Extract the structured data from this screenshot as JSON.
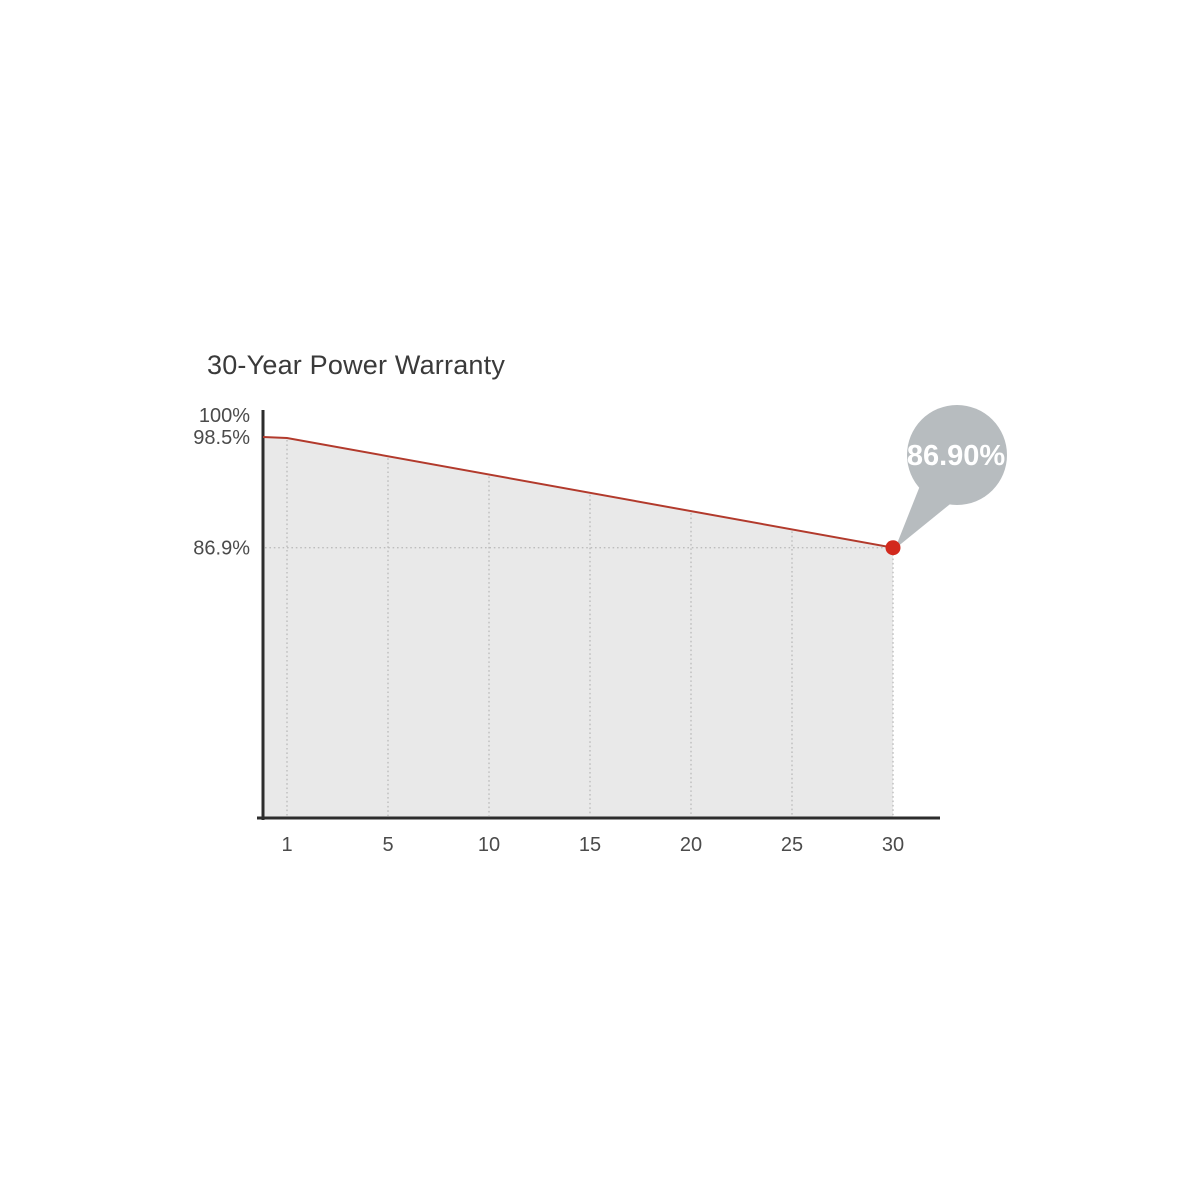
{
  "chart_data": {
    "type": "area",
    "title": "30-Year Power Warranty",
    "xlabel": "",
    "ylabel": "",
    "x_ticks": [
      {
        "label": "1",
        "year": 1
      },
      {
        "label": "5",
        "year": 5
      },
      {
        "label": "10",
        "year": 10
      },
      {
        "label": "15",
        "year": 15
      },
      {
        "label": "20",
        "year": 20
      },
      {
        "label": "25",
        "year": 25
      },
      {
        "label": "30",
        "year": 30
      }
    ],
    "y_ticks": [
      {
        "label": "100%",
        "value": 100
      },
      {
        "label": "98.5%",
        "value": 98.5
      },
      {
        "label": "86.9%",
        "value": 86.9
      }
    ],
    "series": [
      {
        "name": "warranted-power-output",
        "points": [
          {
            "year": 0,
            "value": 98.5
          },
          {
            "year": 1,
            "value": 98.4
          },
          {
            "year": 30,
            "value": 86.9
          }
        ]
      }
    ],
    "annotation": {
      "label": "86.90%",
      "year": 30,
      "value": 86.9
    },
    "axis_range": {
      "x_years": [
        0,
        30
      ],
      "y_top_percent": 100
    },
    "grid": "dotted",
    "legend": "none",
    "colors": {
      "line": "#b23a2c",
      "dot": "#d2291d",
      "area": "#e9e9e9",
      "grid": "#bdbdbd",
      "axis": "#2d2d2d",
      "bubble": "#b7bcbf",
      "bubble_text": "#ffffff",
      "title_text": "#3a3a3a",
      "tick_text": "#4b4b4b"
    }
  }
}
